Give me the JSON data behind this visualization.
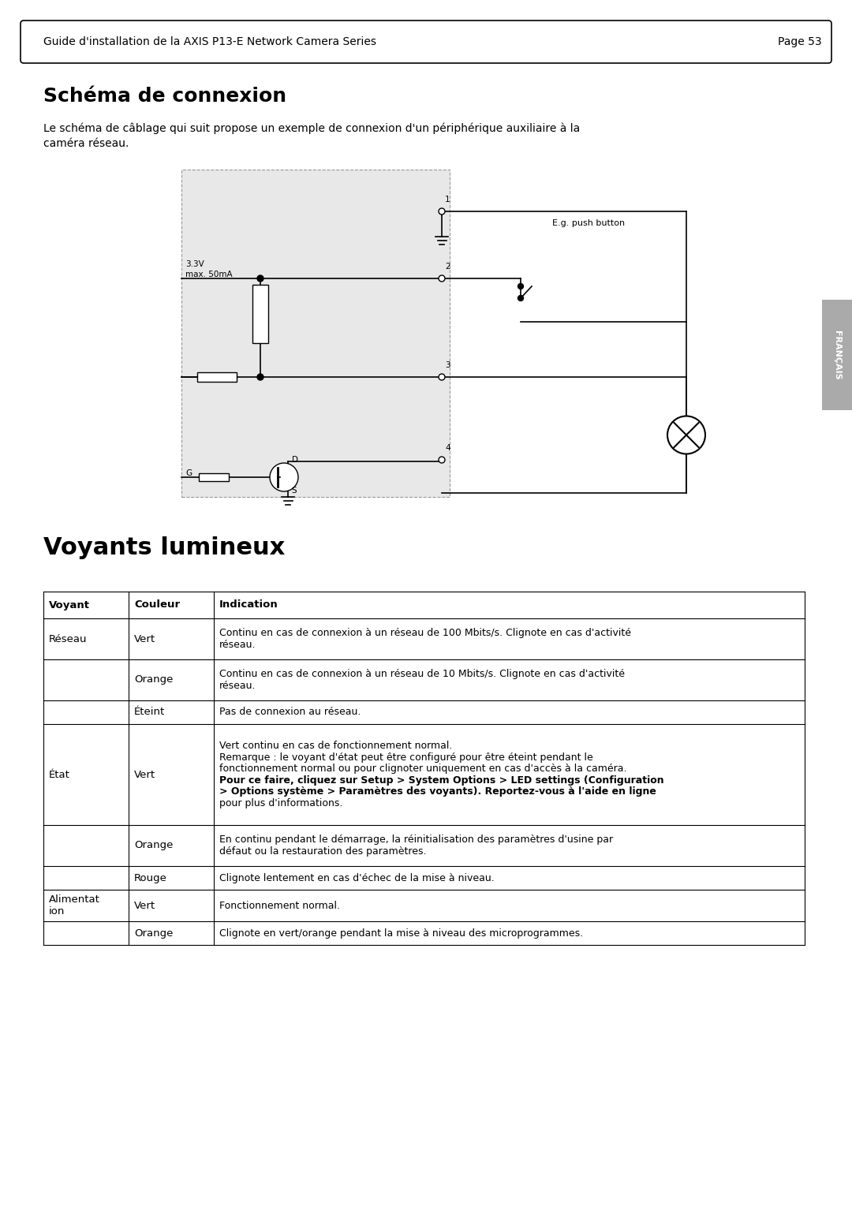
{
  "page_title": "Guide d'installation de la AXIS P13-E Network Camera Series",
  "page_number": "Page 53",
  "section1_title": "Schéma de connexion",
  "section1_body": "Le schéma de câblage qui suit propose un exemple de connexion d'un périphérique auxiliaire à la\ncaméra réseau.",
  "section2_title": "Voyants lumineux",
  "tab_headers": [
    "Voyant",
    "Couleur",
    "Indication"
  ],
  "table_rows": [
    [
      "Réseau",
      "Vert",
      "Continu en cas de connexion à un réseau de 100 Mbits/s. Clignote en cas d'activité\nréseau."
    ],
    [
      "",
      "Orange",
      "Continu en cas de connexion à un réseau de 10 Mbits/s. Clignote en cas d'activité\nréseau."
    ],
    [
      "",
      "Éteint",
      "Pas de connexion au réseau."
    ],
    [
      "État",
      "Vert",
      "Vert continu en cas de fonctionnement normal.\nRemarque : le voyant d'état peut être configuré pour être éteint pendant le\nfonctionnement normal ou pour clignoter uniquement en cas d'accès à la caméra.\nPour ce faire, cliquez sur Setup > System Options > LED settings (Configuration\n> Options système > Paramètres des voyants). Reportez-vous à l'aide en ligne\npour plus d'informations."
    ],
    [
      "",
      "Orange",
      "En continu pendant le démarrage, la réinitialisation des paramètres d'usine par\ndéfaut ou la restauration des paramètres."
    ],
    [
      "",
      "Rouge",
      "Clignote lentement en cas d'échec de la mise à niveau."
    ],
    [
      "Alimentat\nion",
      "Vert",
      "Fonctionnement normal."
    ],
    [
      "",
      "Orange",
      "Clignote en vert/orange pendant la mise à niveau des microprogrammes."
    ]
  ],
  "sidebar_text": "FRANÇAIS",
  "bg_color": "#ffffff",
  "header_border_color": "#000000",
  "table_border_color": "#000000",
  "circuit_bg": "#e8e8e8",
  "circuit_border": "#888888"
}
